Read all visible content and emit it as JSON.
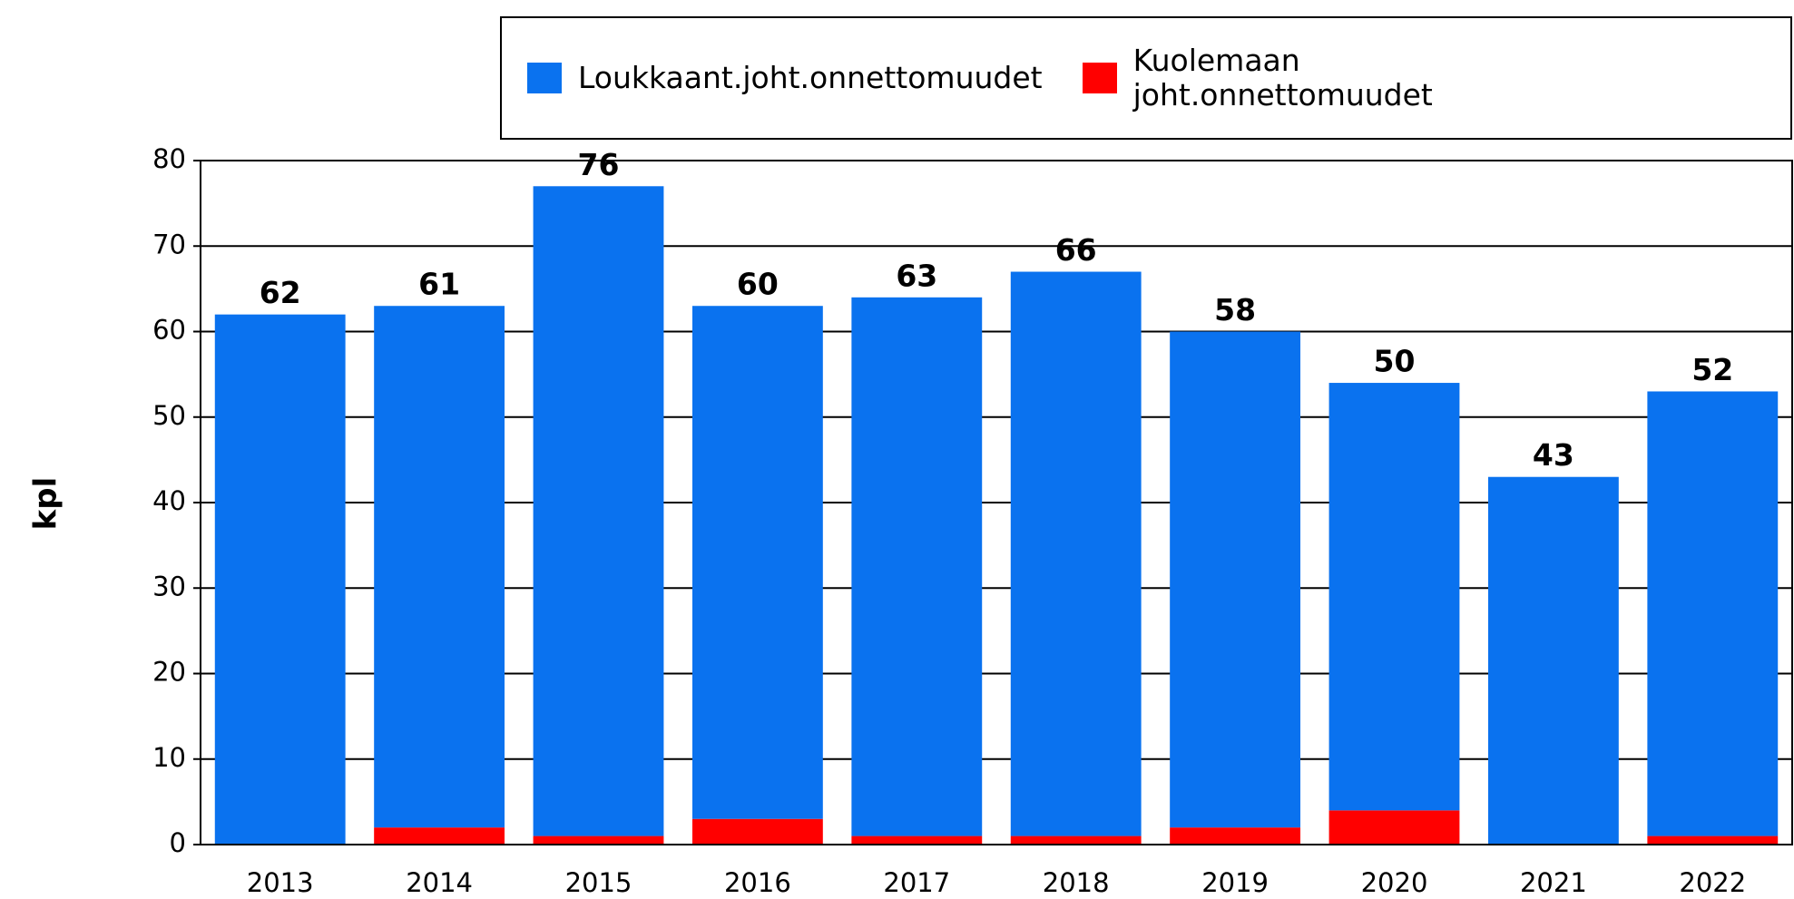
{
  "chart_data": {
    "type": "bar",
    "stacked": true,
    "y_label": "kpl",
    "categories": [
      "2013",
      "2014",
      "2015",
      "2016",
      "2017",
      "2018",
      "2019",
      "2020",
      "2021",
      "2022"
    ],
    "series": [
      {
        "name": "Loukkaant.joht.onnettomuudet",
        "color": "#0a72ef",
        "values": [
          62,
          61,
          76,
          60,
          63,
          66,
          58,
          50,
          43,
          52
        ]
      },
      {
        "name": "Kuolemaan joht.onnettomuudet",
        "color": "#ff0000",
        "values": [
          0,
          2,
          1,
          3,
          1,
          1,
          2,
          4,
          0,
          1
        ]
      }
    ],
    "ylim": [
      0,
      80
    ],
    "yticks": [
      0,
      10,
      20,
      30,
      40,
      50,
      60,
      70,
      80
    ],
    "grid": true
  }
}
